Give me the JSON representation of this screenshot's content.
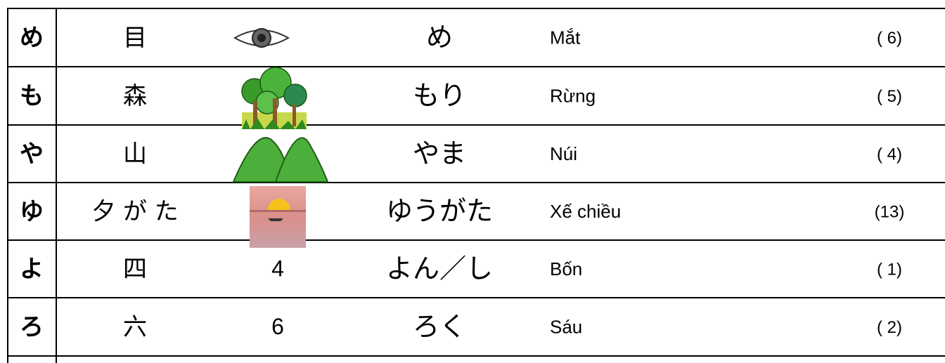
{
  "table": {
    "rows": [
      {
        "kana": "め",
        "kanji": "目",
        "reading": "め",
        "meaning": "Mắt",
        "count": "( 6)"
      },
      {
        "kana": "も",
        "kanji": "森",
        "reading": "もり",
        "meaning": "Rừng",
        "count": "( 5)"
      },
      {
        "kana": "や",
        "kanji": "山",
        "reading": "やま",
        "meaning": "Núi",
        "count": "( 4)"
      },
      {
        "kana": "ゆ",
        "kanji": "夕 が た",
        "reading": "ゆうがた",
        "meaning": "Xế chiều",
        "count": "(13)"
      },
      {
        "kana": "よ",
        "kanji": "四",
        "numeral": "4",
        "reading": "よん／し",
        "meaning": "Bốn",
        "count": "( 1)"
      },
      {
        "kana": "ろ",
        "kanji": "六",
        "numeral": "6",
        "reading": "ろく",
        "meaning": "Sáu",
        "count": "( 2)"
      }
    ]
  }
}
